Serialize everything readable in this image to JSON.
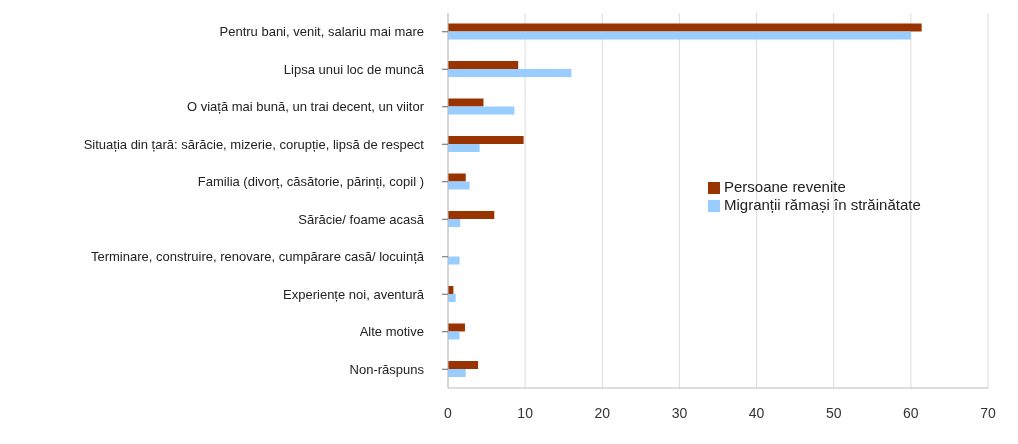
{
  "chart_data": {
    "type": "bar",
    "orientation": "horizontal",
    "categories": [
      "Pentru bani, venit, salariu mai mare",
      "Lipsa unui loc de muncă",
      "O viață mai bună, un trai decent, un viitor",
      "Situația din țară: sărăcie, mizerie, corupție, lipsă de respect",
      "Familia (divorț, căsătorie, părinți, copil )",
      "Sărăcie/ foame acasă",
      "Terminare, construire, renovare, cumpărare casă/ locuință",
      "Experiențe noi, aventură",
      "Alte motive",
      "Non-răspuns"
    ],
    "series": [
      {
        "name": "Persoane revenite",
        "color": "#993300",
        "values": [
          61.4,
          9.1,
          4.6,
          9.8,
          2.3,
          6.0,
          null,
          0.7,
          2.2,
          3.9
        ]
      },
      {
        "name": "Migranții rămași în străinătate",
        "color": "#99ccff",
        "values": [
          60.0,
          16.0,
          8.6,
          4.1,
          2.8,
          1.6,
          1.5,
          1.0,
          1.5,
          2.3
        ]
      }
    ],
    "xlim": [
      0,
      70
    ],
    "xticks": [
      0,
      10,
      20,
      30,
      40,
      50,
      60,
      70
    ],
    "grid": "x",
    "legend": "right"
  }
}
